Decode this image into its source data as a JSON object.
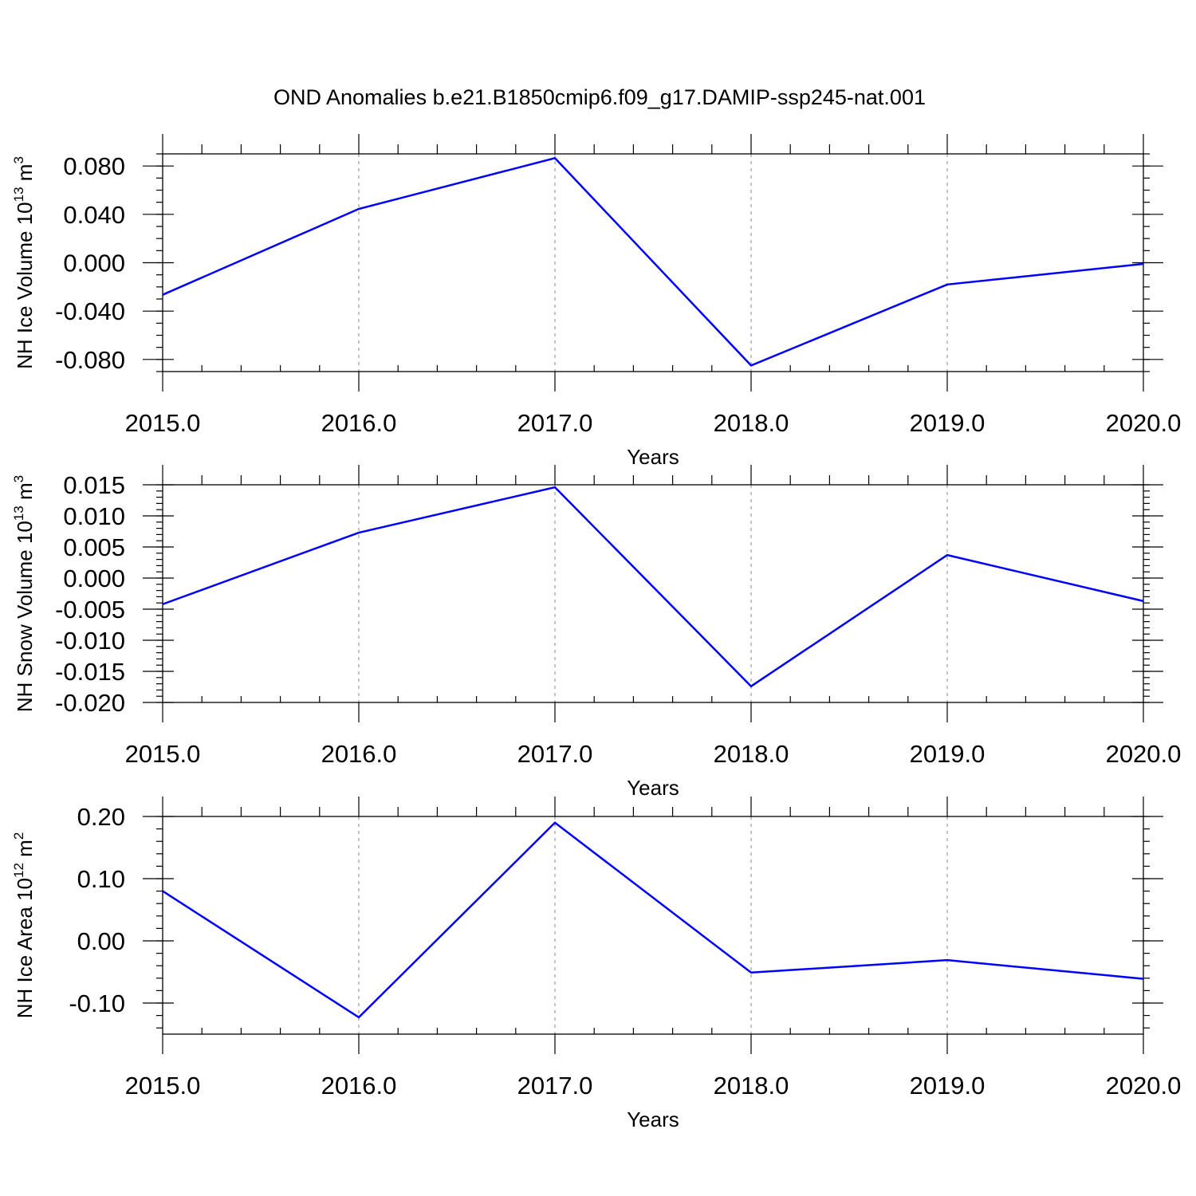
{
  "figure": {
    "title": "OND Anomalies b.e21.B1850cmip6.f09_g17.DAMIP-ssp245-nat.001"
  },
  "colors": {
    "series": "#0000ff",
    "frame": "#000000",
    "grid": "#888888"
  },
  "chart_data": [
    {
      "type": "line",
      "xlabel": "Years",
      "ylabel_text": "NH Ice Volume 10",
      "ylabel_exp": "13",
      "ylabel_unit": " m",
      "ylabel_unit_exp": "3",
      "xlim": [
        2015,
        2020
      ],
      "ylim": [
        -0.09,
        0.09
      ],
      "x_ticks": [
        2015,
        2016,
        2017,
        2018,
        2019,
        2020
      ],
      "x_tick_labels": [
        "2015.0",
        "2016.0",
        "2017.0",
        "2018.0",
        "2019.0",
        "2020.0"
      ],
      "y_ticks": [
        -0.08,
        -0.04,
        0.0,
        0.04,
        0.08
      ],
      "y_tick_labels": [
        "-0.080",
        "-0.040",
        "0.000",
        "0.040",
        "0.080"
      ],
      "y_minor_step": 0.01,
      "grid": "vertical dashed",
      "series": [
        {
          "x": [
            2015,
            2016,
            2017,
            2018,
            2019,
            2020
          ],
          "y": [
            -0.0265,
            0.0445,
            0.0865,
            -0.085,
            -0.018,
            -0.001
          ]
        }
      ]
    },
    {
      "type": "line",
      "xlabel": "Years",
      "ylabel_text": "NH Snow Volume 10",
      "ylabel_exp": "13",
      "ylabel_unit": " m",
      "ylabel_unit_exp": "3",
      "xlim": [
        2015,
        2020
      ],
      "ylim": [
        -0.02,
        0.015
      ],
      "x_ticks": [
        2015,
        2016,
        2017,
        2018,
        2019,
        2020
      ],
      "x_tick_labels": [
        "2015.0",
        "2016.0",
        "2017.0",
        "2018.0",
        "2019.0",
        "2020.0"
      ],
      "y_ticks": [
        -0.02,
        -0.015,
        -0.01,
        -0.005,
        0.0,
        0.005,
        0.01,
        0.015
      ],
      "y_tick_labels": [
        "-0.020",
        "-0.015",
        "-0.010",
        "-0.005",
        "0.000",
        "0.005",
        "0.010",
        "0.015"
      ],
      "y_minor_step": 0.001,
      "grid": "vertical dashed",
      "series": [
        {
          "x": [
            2015,
            2016,
            2017,
            2018,
            2019,
            2020
          ],
          "y": [
            -0.0042,
            0.0073,
            0.0146,
            -0.0174,
            0.0037,
            -0.0037
          ]
        }
      ]
    },
    {
      "type": "line",
      "xlabel": "Years",
      "ylabel_text": "NH Ice Area 10",
      "ylabel_exp": "12",
      "ylabel_unit": " m",
      "ylabel_unit_exp": "2",
      "xlim": [
        2015,
        2020
      ],
      "ylim": [
        -0.15,
        0.2
      ],
      "x_ticks": [
        2015,
        2016,
        2017,
        2018,
        2019,
        2020
      ],
      "x_tick_labels": [
        "2015.0",
        "2016.0",
        "2017.0",
        "2018.0",
        "2019.0",
        "2020.0"
      ],
      "y_ticks": [
        -0.1,
        0.0,
        0.1,
        0.2
      ],
      "y_tick_labels": [
        "-0.10",
        "0.00",
        "0.10",
        "0.20"
      ],
      "y_minor_step": 0.02,
      "grid": "vertical dashed",
      "series": [
        {
          "x": [
            2015,
            2016,
            2017,
            2018,
            2019,
            2020
          ],
          "y": [
            0.08,
            -0.123,
            0.19,
            -0.051,
            -0.031,
            -0.061
          ]
        }
      ]
    }
  ]
}
